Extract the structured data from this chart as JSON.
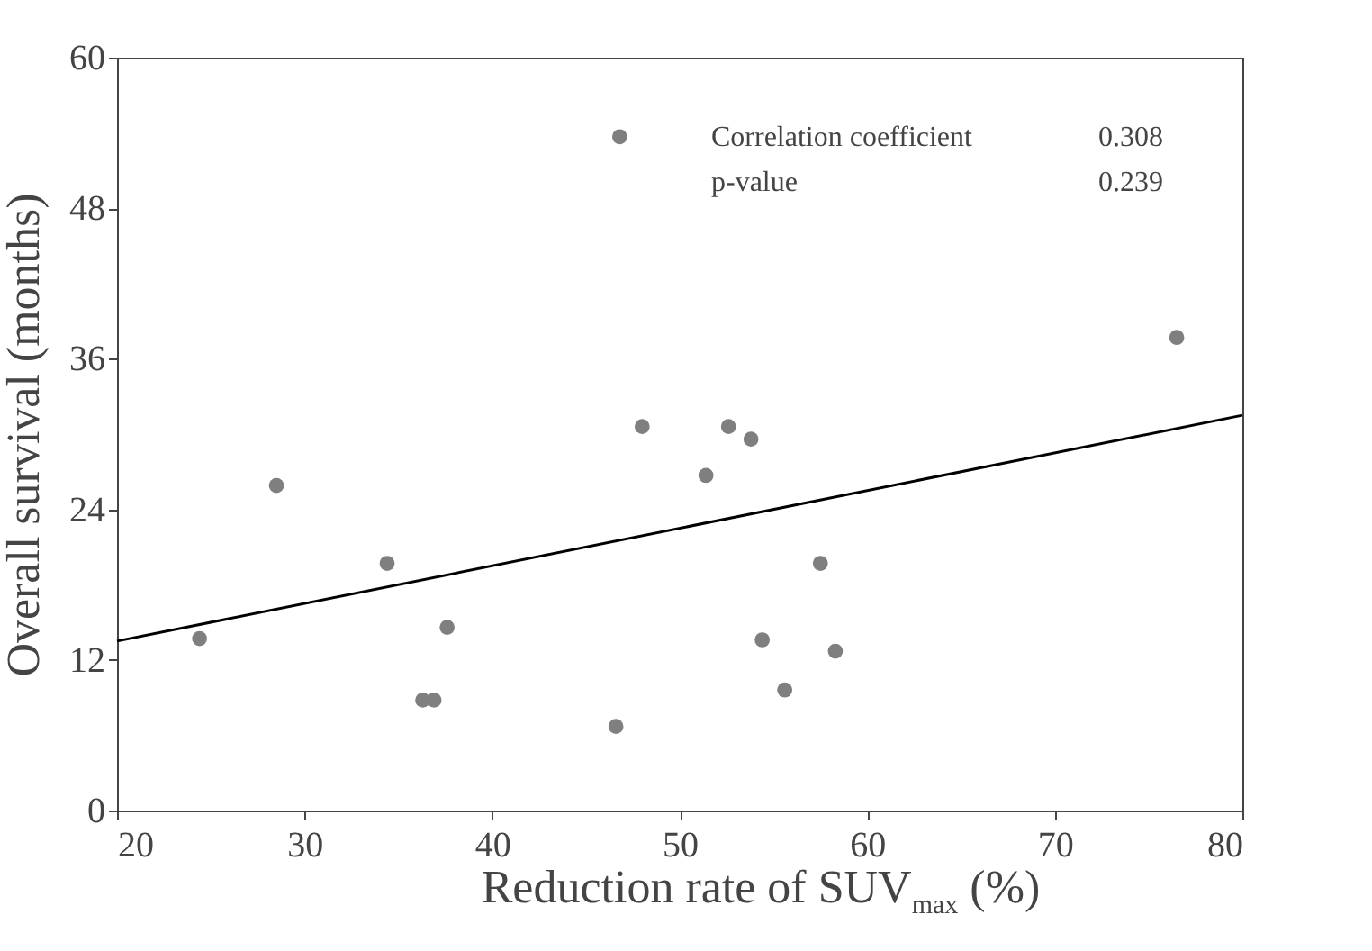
{
  "chart_data": {
    "type": "scatter",
    "xlabel": "Reduction rate of SUV$_{max}$ (%)",
    "ylabel": "Overall survival  (months)",
    "annotations": [
      "Correlation coefficient",
      "0.308",
      "p-value",
      "0.239"
    ],
    "xlim": [
      20,
      80
    ],
    "xticks": [
      20,
      30,
      40,
      50,
      60,
      70,
      80
    ],
    "ylim": [
      0,
      60
    ],
    "yticks": [
      0,
      12,
      24,
      36,
      48,
      60
    ],
    "grid": false,
    "marker": "circle",
    "series": [
      {
        "color": "#7f7f7f",
        "x": [
          24.4,
          28.5,
          34.4,
          37.6,
          36.3,
          36.9,
          46.6,
          46.8,
          48.0,
          51.4,
          52.6,
          53.8,
          54.4,
          55.6,
          57.5,
          58.3,
          76.5
        ],
        "values": [
          13.7,
          25.9,
          19.7,
          14.6,
          8.8,
          8.8,
          6.7,
          53.7,
          30.6,
          26.7,
          30.6,
          29.6,
          13.6,
          9.6,
          19.7,
          12.7,
          37.7
        ]
      },
      {
        "type": "line",
        "color": "#000000",
        "x": [
          20,
          80
        ],
        "values": [
          13.5,
          31.5
        ],
        "line_style": "solid",
        "marker": "none"
      }
    ]
  }
}
